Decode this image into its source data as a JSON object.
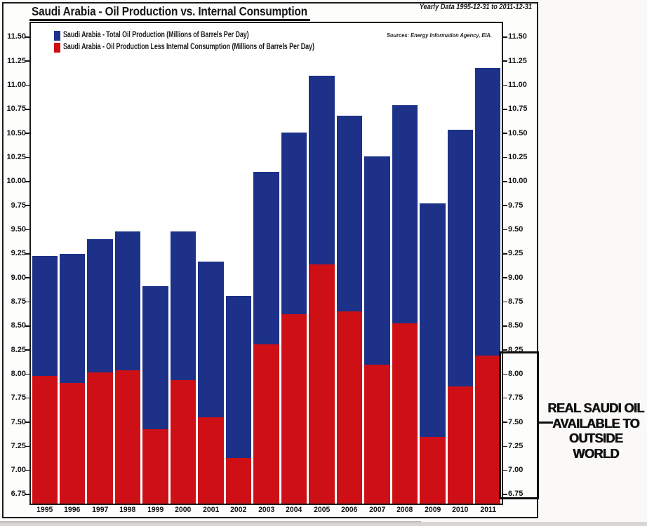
{
  "title": "Saudi Arabia - Oil Production vs. Internal Consumption",
  "subtitle": "Yearly Data 1995-12-31 to 2011-12-31",
  "source": "Sources: Energy Information Agency, EIA.",
  "callout": {
    "lines": [
      "REAL SAUDI OIL",
      "AVAILABLE TO",
      "OUTSIDE WORLD"
    ]
  },
  "chart_data": {
    "type": "bar",
    "subtype": "overlapped",
    "title": "Saudi Arabia - Oil Production vs. Internal Consumption",
    "categories": [
      "1995",
      "1996",
      "1997",
      "1998",
      "1999",
      "2000",
      "2001",
      "2002",
      "2003",
      "2004",
      "2005",
      "2006",
      "2007",
      "2008",
      "2009",
      "2010",
      "2011"
    ],
    "series": [
      {
        "name": "Saudi Arabia - Total Oil Production (Millions of Barrels Per Day)",
        "color": "#1c3187",
        "values": [
          9.23,
          9.25,
          9.4,
          9.48,
          8.91,
          9.48,
          9.17,
          8.81,
          10.1,
          10.51,
          11.1,
          10.68,
          10.26,
          10.79,
          9.77,
          10.54,
          11.18
        ]
      },
      {
        "name": "Saudi Arabia - Oil Production Less Internal Consumption (Millions of Barrels Per Day)",
        "color": "#ce1016",
        "values": [
          7.98,
          7.91,
          8.02,
          8.04,
          7.43,
          7.94,
          7.55,
          7.13,
          8.31,
          8.62,
          9.14,
          8.65,
          8.1,
          8.53,
          7.35,
          7.87,
          8.19
        ]
      }
    ],
    "xlabel": "",
    "ylabel": "Millions of Barrels Per Day",
    "ylim": [
      6.655,
      11.645
    ],
    "yticks": [
      6.75,
      7.0,
      7.25,
      7.5,
      7.75,
      8.0,
      8.25,
      8.5,
      8.75,
      9.0,
      9.25,
      9.5,
      9.75,
      10.0,
      10.25,
      10.5,
      10.75,
      11.0,
      11.25,
      11.5
    ],
    "y_axis_sides": "both",
    "grid": false,
    "legend_position": "top-left"
  }
}
